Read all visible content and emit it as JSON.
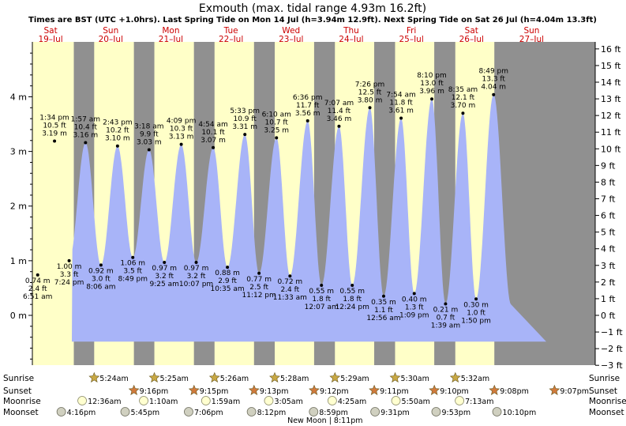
{
  "chart_data": {
    "type": "area",
    "title": "Exmouth (max. tidal range 4.93m 16.2ft)",
    "subtitle": "Times are BST (UTC +1.0hrs). Last Spring Tide on Mon 14 Jul (h=3.94m 12.9ft). Next Spring Tide on Sat 26 Jul (h=4.04m 13.3ft)",
    "days": [
      {
        "dow": "Sat",
        "date": "19–Jul"
      },
      {
        "dow": "Sun",
        "date": "20–Jul"
      },
      {
        "dow": "Mon",
        "date": "21–Jul"
      },
      {
        "dow": "Tue",
        "date": "22–Jul"
      },
      {
        "dow": "Wed",
        "date": "23–Jul"
      },
      {
        "dow": "Thu",
        "date": "24–Jul"
      },
      {
        "dow": "Fri",
        "date": "25–Jul"
      },
      {
        "dow": "Sat",
        "date": "26–Jul"
      },
      {
        "dow": "Sun",
        "date": "27–Jul"
      }
    ],
    "y_left": {
      "unit": "m",
      "ticks": [
        "0 m",
        "1 m",
        "2 m",
        "3 m",
        "4 m"
      ],
      "range_m": [
        -0.91,
        4.93
      ]
    },
    "y_right": {
      "unit": "ft",
      "ticks": [
        "−3 ft",
        "−2 ft",
        "−1 ft",
        "0 ft",
        "1 ft",
        "2 ft",
        "3 ft",
        "4 ft",
        "5 ft",
        "6 ft",
        "7 ft",
        "8 ft",
        "9 ft",
        "10 ft",
        "11 ft",
        "12 ft",
        "13 ft",
        "14 ft",
        "15 ft",
        "16 ft"
      ]
    },
    "tides": [
      {
        "type": "low",
        "day": 0,
        "time": "6:51 am",
        "m": 0.74,
        "m_label": "0.74 m",
        "ft_label": "2.4 ft"
      },
      {
        "type": "high",
        "day": 0,
        "time": "1:34 pm",
        "m": 3.19,
        "m_label": "3.19 m",
        "ft_label": "10.5 ft"
      },
      {
        "type": "low",
        "day": 0,
        "time": "7:24 pm",
        "m": 1.0,
        "m_label": "1.00 m",
        "ft_label": "3.3 ft"
      },
      {
        "type": "high",
        "day": 1,
        "time": "1:57 am",
        "m": 3.16,
        "m_label": "3.16 m",
        "ft_label": "10.4 ft"
      },
      {
        "type": "low",
        "day": 1,
        "time": "8:06 am",
        "m": 0.92,
        "m_label": "0.92 m",
        "ft_label": "3.0 ft"
      },
      {
        "type": "high",
        "day": 1,
        "time": "2:43 pm",
        "m": 3.1,
        "m_label": "3.10 m",
        "ft_label": "10.2 ft"
      },
      {
        "type": "low",
        "day": 1,
        "time": "8:49 pm",
        "m": 1.06,
        "m_label": "1.06 m",
        "ft_label": "3.5 ft"
      },
      {
        "type": "high",
        "day": 2,
        "time": "3:18 am",
        "m": 3.03,
        "m_label": "3.03 m",
        "ft_label": "9.9 ft"
      },
      {
        "type": "low",
        "day": 2,
        "time": "9:25 am",
        "m": 0.97,
        "m_label": "0.97 m",
        "ft_label": "3.2 ft"
      },
      {
        "type": "high",
        "day": 2,
        "time": "4:09 pm",
        "m": 3.13,
        "m_label": "3.13 m",
        "ft_label": "10.3 ft"
      },
      {
        "type": "low",
        "day": 2,
        "time": "10:07 pm",
        "m": 0.97,
        "m_label": "0.97 m",
        "ft_label": "3.2 ft"
      },
      {
        "type": "high",
        "day": 3,
        "time": "4:54 am",
        "m": 3.07,
        "m_label": "3.07 m",
        "ft_label": "10.1 ft"
      },
      {
        "type": "low",
        "day": 3,
        "time": "10:35 am",
        "m": 0.88,
        "m_label": "0.88 m",
        "ft_label": "2.9 ft"
      },
      {
        "type": "high",
        "day": 3,
        "time": "5:33 pm",
        "m": 3.31,
        "m_label": "3.31 m",
        "ft_label": "10.9 ft"
      },
      {
        "type": "low",
        "day": 3,
        "time": "11:12 pm",
        "m": 0.77,
        "m_label": "0.77 m",
        "ft_label": "2.5 ft"
      },
      {
        "type": "high",
        "day": 4,
        "time": "6:10 am",
        "m": 3.25,
        "m_label": "3.25 m",
        "ft_label": "10.7 ft"
      },
      {
        "type": "low",
        "day": 4,
        "time": "11:33 am",
        "m": 0.72,
        "m_label": "0.72 m",
        "ft_label": "2.4 ft"
      },
      {
        "type": "high",
        "day": 4,
        "time": "6:36 pm",
        "m": 3.56,
        "m_label": "3.56 m",
        "ft_label": "11.7 ft"
      },
      {
        "type": "low",
        "day": 5,
        "time": "12:07 am",
        "m": 0.55,
        "m_label": "0.55 m",
        "ft_label": "1.8 ft"
      },
      {
        "type": "high",
        "day": 5,
        "time": "7:07 am",
        "m": 3.46,
        "m_label": "3.46 m",
        "ft_label": "11.4 ft"
      },
      {
        "type": "low",
        "day": 5,
        "time": "12:24 pm",
        "m": 0.55,
        "m_label": "0.55 m",
        "ft_label": "1.8 ft"
      },
      {
        "type": "high",
        "day": 5,
        "time": "7:26 pm",
        "m": 3.8,
        "m_label": "3.80 m",
        "ft_label": "12.5 ft"
      },
      {
        "type": "low",
        "day": 6,
        "time": "12:56 am",
        "m": 0.35,
        "m_label": "0.35 m",
        "ft_label": "1.1 ft"
      },
      {
        "type": "high",
        "day": 6,
        "time": "7:54 am",
        "m": 3.61,
        "m_label": "3.61 m",
        "ft_label": "11.8 ft"
      },
      {
        "type": "low",
        "day": 6,
        "time": "1:09 pm",
        "m": 0.4,
        "m_label": "0.40 m",
        "ft_label": "1.3 ft"
      },
      {
        "type": "high",
        "day": 6,
        "time": "8:10 pm",
        "m": 3.96,
        "m_label": "3.96 m",
        "ft_label": "13.0 ft"
      },
      {
        "type": "low",
        "day": 7,
        "time": "1:39 am",
        "m": 0.21,
        "m_label": "0.21 m",
        "ft_label": "0.7 ft"
      },
      {
        "type": "high",
        "day": 7,
        "time": "8:35 am",
        "m": 3.7,
        "m_label": "3.70 m",
        "ft_label": "12.1 ft"
      },
      {
        "type": "low",
        "day": 7,
        "time": "1:50 pm",
        "m": 0.3,
        "m_label": "0.30 m",
        "ft_label": "1.0 ft"
      },
      {
        "type": "high",
        "day": 7,
        "time": "8:49 pm",
        "m": 4.04,
        "m_label": "4.04 m",
        "ft_label": "13.3 ft"
      }
    ],
    "night_ranges": [
      {
        "start_day": 1,
        "start": "9:16 pm",
        "end": "5:24 am"
      },
      {
        "start_day": 2,
        "start": "9:15 pm",
        "end": "5:25 am"
      },
      {
        "start_day": 3,
        "start": "9:13 pm",
        "end": "5:26 am"
      },
      {
        "start_day": 4,
        "start": "9:12 pm",
        "end": "5:28 am"
      },
      {
        "start_day": 5,
        "start": "9:11 pm",
        "end": "5:29 am"
      },
      {
        "start_day": 6,
        "start": "9:10 pm",
        "end": "5:30 am"
      },
      {
        "start_day": 7,
        "start": "9:08 pm",
        "end": "5:32 am"
      },
      {
        "start_day": 8,
        "start": "9:07 pm",
        "end": ""
      }
    ],
    "rows": {
      "labels": {
        "sunrise": "Sunrise",
        "sunset": "Sunset",
        "moonrise": "Moonrise",
        "moonset": "Moonset"
      },
      "sunrise": [
        {
          "day": 1,
          "time": "5:24am"
        },
        {
          "day": 2,
          "time": "5:25am"
        },
        {
          "day": 3,
          "time": "5:26am"
        },
        {
          "day": 4,
          "time": "5:28am"
        },
        {
          "day": 5,
          "time": "5:29am"
        },
        {
          "day": 6,
          "time": "5:30am"
        },
        {
          "day": 7,
          "time": "5:32am"
        }
      ],
      "sunset": [
        {
          "day": 1,
          "time": "9:16pm"
        },
        {
          "day": 2,
          "time": "9:15pm"
        },
        {
          "day": 3,
          "time": "9:13pm"
        },
        {
          "day": 4,
          "time": "9:12pm"
        },
        {
          "day": 5,
          "time": "9:11pm"
        },
        {
          "day": 6,
          "time": "9:10pm"
        },
        {
          "day": 7,
          "time": "9:08pm"
        },
        {
          "day": 8,
          "time": "9:07pm"
        }
      ],
      "moonrise": [
        {
          "day": 1,
          "time": "12:36am"
        },
        {
          "day": 2,
          "time": "1:10am"
        },
        {
          "day": 3,
          "time": "1:59am"
        },
        {
          "day": 4,
          "time": "3:05am"
        },
        {
          "day": 5,
          "time": "4:25am"
        },
        {
          "day": 6,
          "time": "5:50am"
        },
        {
          "day": 7,
          "time": "7:13am"
        }
      ],
      "moonset": [
        {
          "day": 0,
          "time": "4:16pm"
        },
        {
          "day": 1,
          "time": "5:45pm"
        },
        {
          "day": 2,
          "time": "7:06pm"
        },
        {
          "day": 3,
          "time": "8:12pm"
        },
        {
          "day": 4,
          "time": "8:59pm"
        },
        {
          "day": 5,
          "time": "9:31pm"
        },
        {
          "day": 6,
          "time": "9:53pm"
        },
        {
          "day": 7,
          "time": "10:10pm"
        }
      ]
    },
    "moon_phase": {
      "label": "New Moon",
      "time": "8:11pm",
      "day": 5
    },
    "colors": {
      "day_bg": "#ffffc8",
      "night_bg": "#909090",
      "tide_fill": "#a8b4f8",
      "day_label": "#cc0000",
      "sun_icon": "#c8a844",
      "sunset_icon": "#d07a3c",
      "moonrise_icon": "#ffffd0",
      "moonset_icon": "#d0d0c0"
    }
  }
}
